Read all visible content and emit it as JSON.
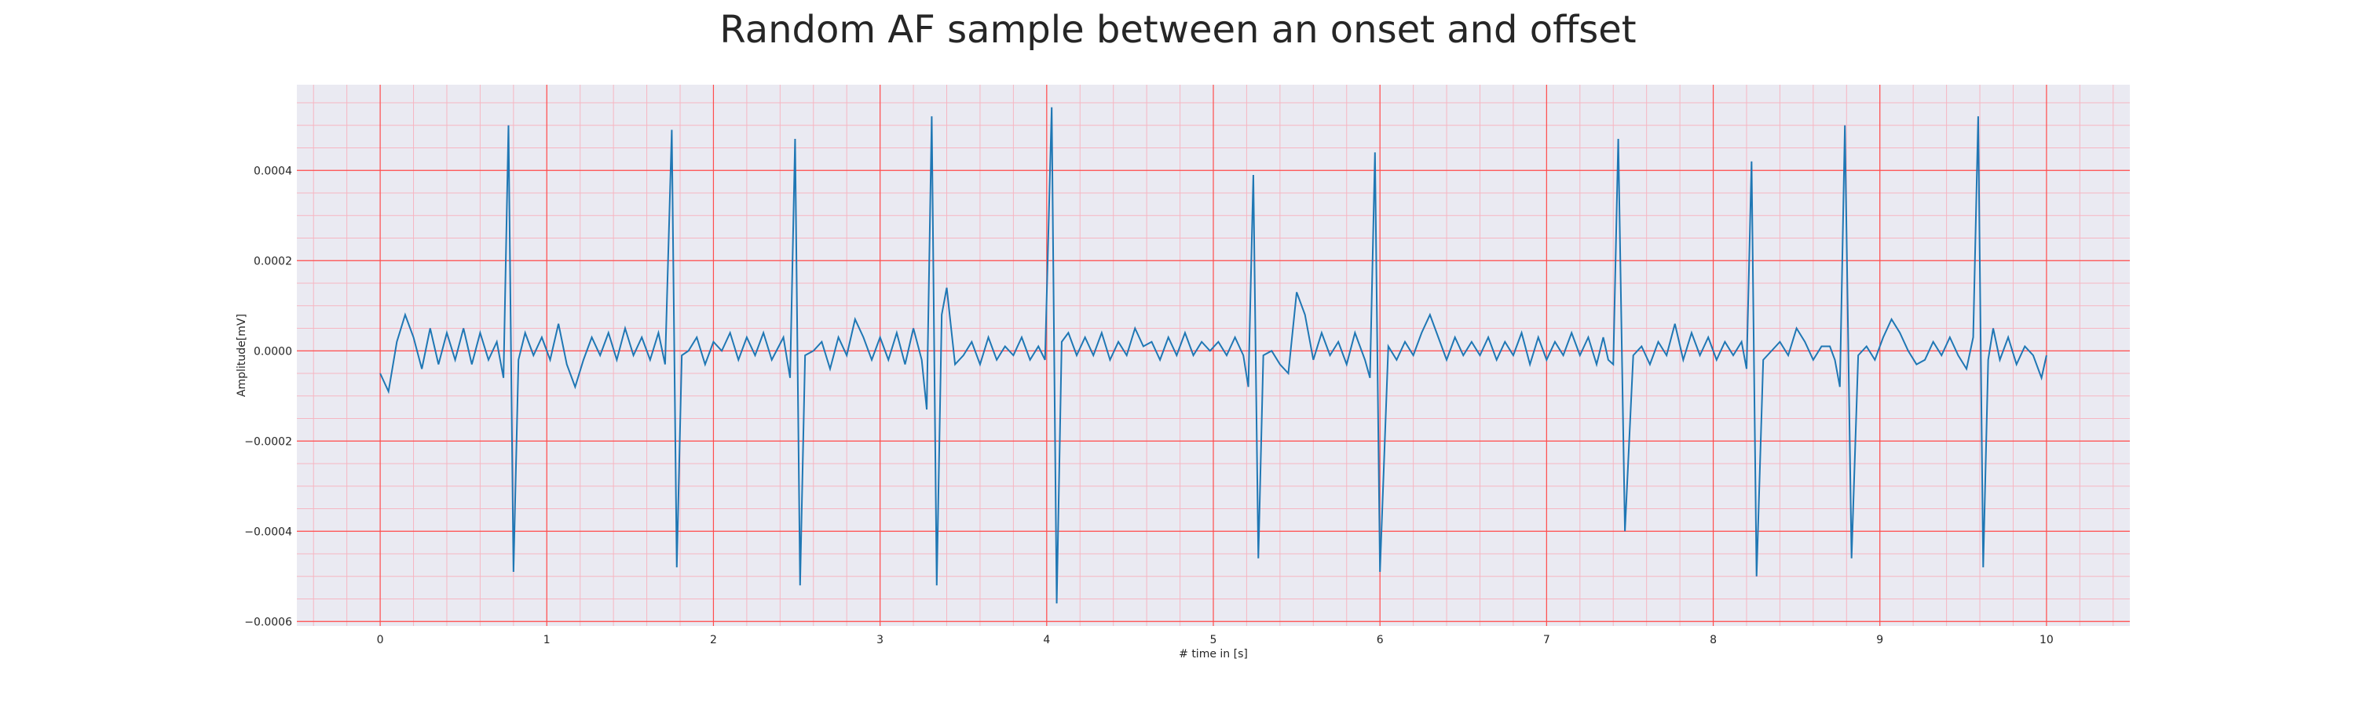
{
  "chart_data": {
    "type": "line",
    "title": "Random AF sample between an onset and offset",
    "xlabel": "# time in [s]",
    "ylabel": "Amplitude[mV]",
    "xlim": [
      -0.5,
      10.5
    ],
    "ylim": [
      -0.00061,
      0.00059
    ],
    "x_ticks": [
      0,
      1,
      2,
      3,
      4,
      5,
      6,
      7,
      8,
      9,
      10
    ],
    "x_tick_labels": [
      "0",
      "1",
      "2",
      "3",
      "4",
      "5",
      "6",
      "7",
      "8",
      "9",
      "10"
    ],
    "y_ticks": [
      -0.0006,
      -0.0004,
      -0.0002,
      0.0,
      0.0002,
      0.0004
    ],
    "y_tick_labels": [
      "−0.0006",
      "−0.0004",
      "−0.0002",
      "0.0000",
      "0.0002",
      "0.0004"
    ],
    "grid": true,
    "minor_grid": true,
    "colors": {
      "line": "#1f77b4",
      "background": "#eaeaf2",
      "major_grid": "#ff4d4d",
      "minor_grid": "#f6b6c2"
    },
    "series": [
      {
        "x": [
          0.0,
          0.05,
          0.1,
          0.15,
          0.2,
          0.25,
          0.3,
          0.35,
          0.4,
          0.45,
          0.5,
          0.55,
          0.6,
          0.65,
          0.7,
          0.74,
          0.77,
          0.8,
          0.83,
          0.87,
          0.92,
          0.97,
          1.02,
          1.07,
          1.12,
          1.17,
          1.22,
          1.27,
          1.32,
          1.37,
          1.42,
          1.47,
          1.52,
          1.57,
          1.62,
          1.67,
          1.71,
          1.75,
          1.78,
          1.81,
          1.85,
          1.9,
          1.95,
          2.0,
          2.05,
          2.1,
          2.15,
          2.2,
          2.25,
          2.3,
          2.35,
          2.42,
          2.46,
          2.49,
          2.52,
          2.55,
          2.6,
          2.65,
          2.7,
          2.75,
          2.8,
          2.85,
          2.9,
          2.95,
          3.0,
          3.05,
          3.1,
          3.15,
          3.2,
          3.25,
          3.28,
          3.31,
          3.34,
          3.37,
          3.4,
          3.45,
          3.5,
          3.55,
          3.6,
          3.65,
          3.7,
          3.75,
          3.8,
          3.85,
          3.9,
          3.95,
          3.99,
          4.03,
          4.06,
          4.09,
          4.13,
          4.18,
          4.23,
          4.28,
          4.33,
          4.38,
          4.43,
          4.48,
          4.53,
          4.58,
          4.63,
          4.68,
          4.73,
          4.78,
          4.83,
          4.88,
          4.93,
          4.98,
          5.03,
          5.08,
          5.13,
          5.18,
          5.21,
          5.24,
          5.27,
          5.3,
          5.35,
          5.4,
          5.45,
          5.5,
          5.55,
          5.6,
          5.65,
          5.7,
          5.75,
          5.8,
          5.85,
          5.91,
          5.94,
          5.97,
          6.0,
          6.05,
          6.1,
          6.15,
          6.2,
          6.25,
          6.3,
          6.35,
          6.4,
          6.45,
          6.5,
          6.55,
          6.6,
          6.65,
          6.7,
          6.75,
          6.8,
          6.85,
          6.9,
          6.95,
          7.0,
          7.05,
          7.1,
          7.15,
          7.2,
          7.25,
          7.3,
          7.34,
          7.37,
          7.4,
          7.43,
          7.47,
          7.52,
          7.57,
          7.62,
          7.67,
          7.72,
          7.77,
          7.82,
          7.87,
          7.92,
          7.97,
          8.02,
          8.07,
          8.12,
          8.17,
          8.2,
          8.23,
          8.26,
          8.3,
          8.35,
          8.4,
          8.45,
          8.5,
          8.55,
          8.6,
          8.65,
          8.7,
          8.73,
          8.76,
          8.79,
          8.83,
          8.87,
          8.92,
          8.97,
          9.02,
          9.07,
          9.12,
          9.17,
          9.22,
          9.27,
          9.32,
          9.37,
          9.42,
          9.47,
          9.52,
          9.56,
          9.59,
          9.62,
          9.65,
          9.68,
          9.72,
          9.77,
          9.82,
          9.87,
          9.92,
          9.97,
          10.0
        ],
        "y": [
          -5e-05,
          -9e-05,
          2e-05,
          8e-05,
          3e-05,
          -4e-05,
          5e-05,
          -3e-05,
          4e-05,
          -2e-05,
          5e-05,
          -3e-05,
          4e-05,
          -2e-05,
          2e-05,
          -6e-05,
          0.0005,
          -0.00049,
          -2e-05,
          4e-05,
          -1e-05,
          3e-05,
          -2e-05,
          6e-05,
          -3e-05,
          -8e-05,
          -2e-05,
          3e-05,
          -1e-05,
          4e-05,
          -2e-05,
          5e-05,
          -1e-05,
          3e-05,
          -2e-05,
          4e-05,
          -3e-05,
          0.00049,
          -0.00048,
          -1e-05,
          0.0,
          3e-05,
          -3e-05,
          2e-05,
          0.0,
          4e-05,
          -2e-05,
          3e-05,
          -1e-05,
          4e-05,
          -2e-05,
          3e-05,
          -6e-05,
          0.00047,
          -0.00052,
          -1e-05,
          0.0,
          2e-05,
          -4e-05,
          3e-05,
          -1e-05,
          7e-05,
          3e-05,
          -2e-05,
          3e-05,
          -2e-05,
          4e-05,
          -3e-05,
          5e-05,
          -2e-05,
          -0.00013,
          0.00052,
          -0.00052,
          8e-05,
          0.00014,
          -3e-05,
          -1e-05,
          2e-05,
          -3e-05,
          3e-05,
          -2e-05,
          1e-05,
          -1e-05,
          3e-05,
          -2e-05,
          1e-05,
          -2e-05,
          0.00054,
          -0.00056,
          2e-05,
          4e-05,
          -1e-05,
          3e-05,
          -1e-05,
          4e-05,
          -2e-05,
          2e-05,
          -1e-05,
          5e-05,
          1e-05,
          2e-05,
          -2e-05,
          3e-05,
          -1e-05,
          4e-05,
          -1e-05,
          2e-05,
          0.0,
          2e-05,
          -1e-05,
          3e-05,
          -1e-05,
          -8e-05,
          0.00039,
          -0.00046,
          -1e-05,
          0.0,
          -3e-05,
          -5e-05,
          0.00013,
          8e-05,
          -2e-05,
          4e-05,
          -1e-05,
          2e-05,
          -3e-05,
          4e-05,
          -2e-05,
          -6e-05,
          0.00044,
          -0.00049,
          1e-05,
          -2e-05,
          2e-05,
          -1e-05,
          4e-05,
          8e-05,
          3e-05,
          -2e-05,
          3e-05,
          -1e-05,
          2e-05,
          -1e-05,
          3e-05,
          -2e-05,
          2e-05,
          -1e-05,
          4e-05,
          -3e-05,
          3e-05,
          -2e-05,
          2e-05,
          -1e-05,
          4e-05,
          -1e-05,
          3e-05,
          -3e-05,
          3e-05,
          -2e-05,
          -3e-05,
          0.00047,
          -0.0004,
          -1e-05,
          1e-05,
          -3e-05,
          2e-05,
          -1e-05,
          6e-05,
          -2e-05,
          4e-05,
          -1e-05,
          3e-05,
          -2e-05,
          2e-05,
          -1e-05,
          2e-05,
          -4e-05,
          0.00042,
          -0.0005,
          -2e-05,
          0.0,
          2e-05,
          -1e-05,
          5e-05,
          2e-05,
          -2e-05,
          1e-05,
          1e-05,
          -2e-05,
          -8e-05,
          0.0005,
          -0.00046,
          -1e-05,
          1e-05,
          -2e-05,
          3e-05,
          7e-05,
          4e-05,
          0.0,
          -3e-05,
          -2e-05,
          2e-05,
          -1e-05,
          3e-05,
          -1e-05,
          -4e-05,
          3e-05,
          0.00052,
          -0.00048,
          -2e-05,
          5e-05,
          -2e-05,
          3e-05,
          -3e-05,
          1e-05,
          -1e-05,
          -6e-05,
          -1e-05
        ]
      }
    ]
  }
}
